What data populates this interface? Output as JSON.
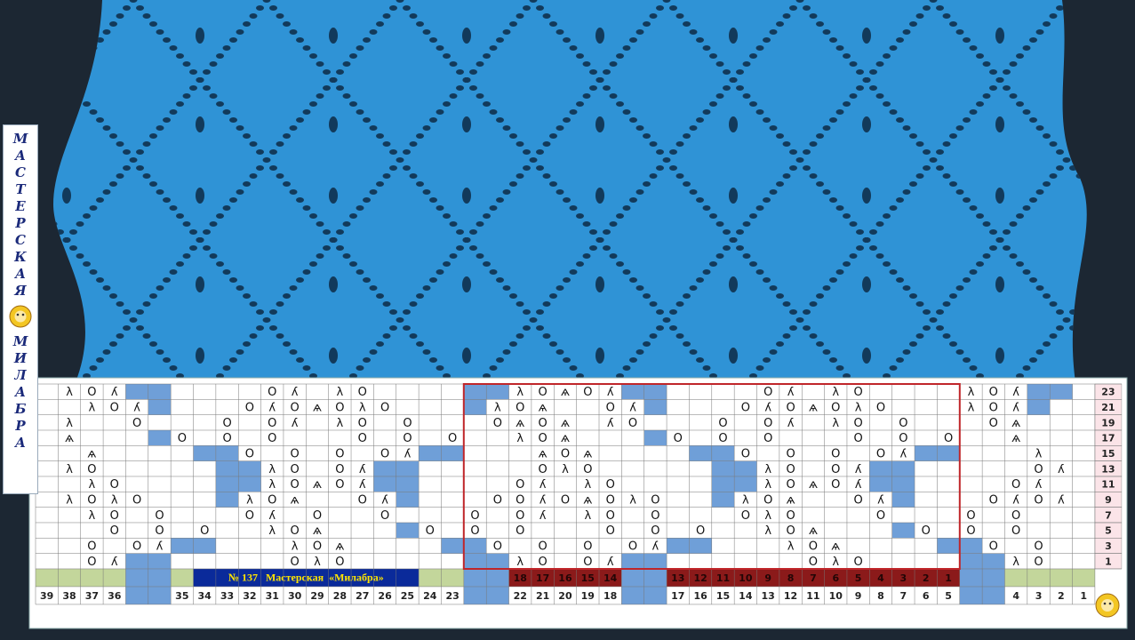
{
  "brand": {
    "top": "МАСТЕРСКАЯ",
    "bottom": "МИЛАБРА"
  },
  "chart": {
    "banner": "№ 137   Мастерская  «Милабра»",
    "rows": [
      {
        "number": 23,
        "cells": {
          "1": "λ",
          "2": "O",
          "3": "ʎ",
          "10": "O",
          "11": "ʎ",
          "13": "λ",
          "14": "O",
          "21": "λ",
          "22": "O",
          "23": "ѧ",
          "24": "O",
          "25": "ʎ",
          "32": "O",
          "33": "ʎ",
          "35": "λ",
          "36": "O",
          "41": "λ",
          "42": "O",
          "43": "ʎ"
        },
        "shaded": [
          4,
          5,
          19,
          20,
          26,
          27,
          44,
          45
        ]
      },
      {
        "number": 21,
        "cells": {
          "2": "λ",
          "3": "O",
          "4": "ʎ",
          "9": "O",
          "10": "ʎ",
          "11": "O",
          "12": "ѧ",
          "13": "O",
          "14": "λ",
          "15": "O",
          "20": "λ",
          "21": "O",
          "22": "ѧ",
          "25": "O",
          "26": "ʎ",
          "31": "O",
          "32": "ʎ",
          "33": "O",
          "34": "ѧ",
          "35": "O",
          "36": "λ",
          "37": "O",
          "41": "λ",
          "42": "O",
          "43": "ʎ"
        },
        "shaded": [
          5,
          19,
          27,
          44
        ]
      },
      {
        "number": 19,
        "cells": {
          "1": "λ",
          "4": "O",
          "8": "O",
          "10": "O",
          "11": "ʎ",
          "13": "λ",
          "14": "O",
          "16": "O",
          "20": "O",
          "21": "ѧ",
          "22": "O",
          "23": "ѧ",
          "25": "ʎ",
          "26": "O",
          "30": "O",
          "32": "O",
          "33": "ʎ",
          "35": "λ",
          "36": "O",
          "38": "O",
          "42": "O",
          "43": "ѧ"
        },
        "shaded": []
      },
      {
        "number": 17,
        "cells": {
          "1": "ѧ",
          "6": "O",
          "8": "O",
          "10": "O",
          "14": "O",
          "16": "O",
          "18": "O",
          "21": "λ",
          "22": "O",
          "23": "ѧ",
          "28": "O",
          "30": "O",
          "32": "O",
          "36": "O",
          "38": "O",
          "40": "O",
          "43": "ѧ"
        },
        "shaded": [
          5,
          27
        ]
      },
      {
        "number": 15,
        "cells": {
          "2": "ѧ",
          "9": "O",
          "11": "O",
          "13": "O",
          "15": "O",
          "16": "ʎ",
          "22": "ѧ",
          "23": "O",
          "24": "ѧ",
          "31": "O",
          "33": "O",
          "35": "O",
          "37": "O",
          "38": "ʎ",
          "44": "λ"
        },
        "shaded": [
          7,
          8,
          17,
          18,
          29,
          30,
          39,
          40
        ]
      },
      {
        "number": 13,
        "cells": {
          "1": "λ",
          "2": "O",
          "10": "λ",
          "11": "O",
          "13": "O",
          "14": "ʎ",
          "22": "O",
          "23": "λ",
          "24": "O",
          "32": "λ",
          "33": "O",
          "35": "O",
          "36": "ʎ",
          "44": "O",
          "45": "ʎ"
        },
        "shaded": [
          8,
          9,
          15,
          16,
          30,
          31,
          37,
          38
        ]
      },
      {
        "number": 11,
        "cells": {
          "2": "λ",
          "3": "O",
          "10": "λ",
          "11": "O",
          "12": "ѧ",
          "13": "O",
          "14": "ʎ",
          "21": "O",
          "22": "ʎ",
          "24": "λ",
          "25": "O",
          "32": "λ",
          "33": "O",
          "34": "ѧ",
          "35": "O",
          "36": "ʎ",
          "43": "O",
          "44": "ʎ"
        },
        "shaded": [
          8,
          9,
          15,
          16,
          30,
          31,
          37,
          38
        ]
      },
      {
        "number": 9,
        "cells": {
          "1": "λ",
          "2": "O",
          "3": "λ",
          "4": "O",
          "9": "λ",
          "10": "O",
          "11": "ѧ",
          "14": "O",
          "15": "ʎ",
          "20": "O",
          "21": "O",
          "22": "ʎ",
          "23": "O",
          "24": "ѧ",
          "25": "O",
          "26": "λ",
          "27": "O",
          "31": "λ",
          "32": "O",
          "33": "ѧ",
          "36": "O",
          "37": "ʎ",
          "42": "O",
          "43": "ʎ",
          "44": "O",
          "45": "ʎ"
        },
        "shaded": [
          8,
          16,
          30,
          38
        ]
      },
      {
        "number": 7,
        "cells": {
          "2": "λ",
          "3": "O",
          "5": "O",
          "9": "O",
          "10": "ʎ",
          "12": "O",
          "15": "O",
          "19": "O",
          "21": "O",
          "22": "ʎ",
          "24": "λ",
          "25": "O",
          "27": "O",
          "31": "O",
          "32": "λ",
          "33": "O",
          "37": "O",
          "41": "O",
          "43": "O"
        },
        "shaded": []
      },
      {
        "number": 5,
        "cells": {
          "3": "O",
          "5": "O",
          "7": "O",
          "10": "λ",
          "11": "O",
          "12": "ѧ",
          "17": "O",
          "19": "O",
          "21": "O",
          "25": "O",
          "27": "O",
          "29": "O",
          "32": "λ",
          "33": "O",
          "34": "ѧ",
          "39": "O",
          "41": "O",
          "43": "O"
        },
        "shaded": [
          16,
          38
        ]
      },
      {
        "number": 3,
        "cells": {
          "2": "O",
          "4": "O",
          "5": "ʎ",
          "11": "λ",
          "12": "O",
          "13": "ѧ",
          "20": "O",
          "22": "O",
          "24": "O",
          "26": "O",
          "27": "ʎ",
          "33": "λ",
          "34": "O",
          "35": "ѧ",
          "42": "O",
          "44": "O"
        },
        "shaded": [
          6,
          7,
          18,
          19,
          28,
          29,
          40,
          41
        ]
      },
      {
        "number": 1,
        "cells": {
          "2": "O",
          "3": "ʎ",
          "11": "O",
          "12": "λ",
          "13": "O",
          "21": "λ",
          "22": "O",
          "24": "O",
          "25": "ʎ",
          "34": "O",
          "35": "λ",
          "36": "O",
          "43": "λ",
          "44": "O"
        },
        "shaded": [
          4,
          5,
          19,
          20,
          26,
          27,
          41,
          42
        ]
      }
    ],
    "repeat_numbers": {
      "21": 18,
      "22": 17,
      "23": 16,
      "24": 15,
      "25": 14,
      "28": 13,
      "29": 12,
      "30": 11,
      "31": 10,
      "32": 9,
      "33": 8,
      "34": 7,
      "35": 6,
      "36": 5,
      "37": 4,
      "38": 3,
      "39": 2,
      "40": 1
    },
    "column_numbers": {
      "0": 39,
      "1": 38,
      "2": 37,
      "3": 36,
      "6": 35,
      "7": 34,
      "8": 33,
      "9": 32,
      "10": 31,
      "11": 30,
      "12": 29,
      "13": 28,
      "14": 27,
      "15": 26,
      "16": 25,
      "17": 24,
      "18": 23,
      "21": 22,
      "22": 21,
      "23": 20,
      "24": 19,
      "25": 18,
      "28": 17,
      "29": 16,
      "30": 15,
      "31": 14,
      "32": 13,
      "33": 12,
      "34": 11,
      "35": 10,
      "36": 9,
      "37": 8,
      "38": 7,
      "39": 6,
      "40": 5,
      "43": 4,
      "44": 3,
      "45": 2,
      "46": 1
    }
  }
}
